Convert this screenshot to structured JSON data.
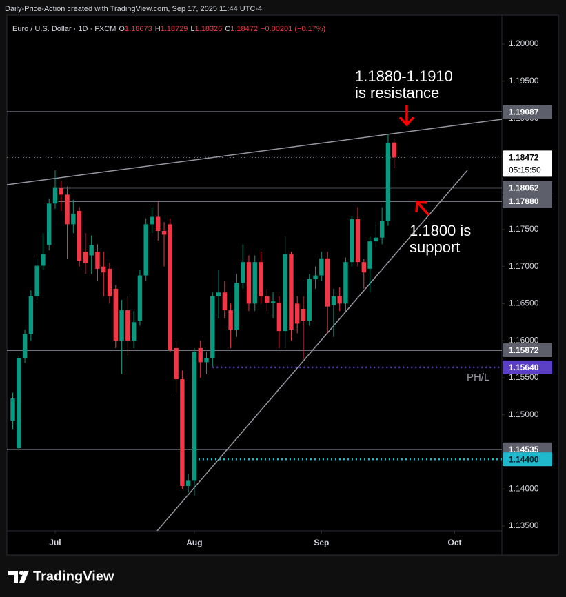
{
  "chart_data": {
    "type": "candlestick",
    "header": "Daily-Price-Action created with TradingView.com, Sep 17, 2025 11:44 UTC-4",
    "legend": {
      "symbol": "Euro / U.S. Dollar · 1D · FXCM",
      "fields": [
        {
          "label": "O",
          "value": 1.18673
        },
        {
          "label": "H",
          "value": 1.18729
        },
        {
          "label": "L",
          "value": 1.18326
        },
        {
          "label": "C",
          "value": 1.18472
        }
      ],
      "change": "−0.00201 (−0.17%)"
    },
    "up_color": "#089981",
    "down_color": "#f23645",
    "open": [
      1.1492,
      1.1455,
      1.1576,
      1.1609,
      1.166,
      1.1701,
      1.1729,
      1.1785,
      1.1806,
      1.1797,
      1.1757,
      1.1775,
      1.172,
      1.1715,
      1.172,
      1.17,
      1.1697,
      1.167,
      1.16,
      1.1641,
      1.16,
      1.1627,
      1.1688,
      1.1757,
      1.1767,
      1.1748,
      1.1757,
      1.159,
      1.1548,
      1.1404,
      1.1411,
      1.159,
      1.1571,
      1.1576,
      1.166,
      1.1665,
      1.1641,
      1.1615,
      1.1678,
      1.1706,
      1.165,
      1.1706,
      1.166,
      1.1651,
      1.1651,
      1.1613,
      1.1717,
      1.165,
      1.1643,
      1.1627,
      1.1683,
      1.1688,
      1.1711,
      1.1648,
      1.166,
      1.165,
      1.1706,
      1.1764,
      1.1706,
      1.1697,
      1.1734,
      1.1739,
      1.1762,
      1.18673
    ],
    "high": [
      1.153,
      1.158,
      1.1615,
      1.1668,
      1.1711,
      1.1745,
      1.1792,
      1.183,
      1.1815,
      1.1808,
      1.179,
      1.178,
      1.1745,
      1.1742,
      1.173,
      1.172,
      1.1705,
      1.1675,
      1.1655,
      1.166,
      1.164,
      1.1695,
      1.1765,
      1.178,
      1.1788,
      1.176,
      1.1765,
      1.16,
      1.156,
      1.142,
      1.159,
      1.16,
      1.1585,
      1.1665,
      1.1695,
      1.168,
      1.165,
      1.169,
      1.173,
      1.1715,
      1.1715,
      1.172,
      1.167,
      1.1665,
      1.166,
      1.174,
      1.172,
      1.166,
      1.166,
      1.169,
      1.17,
      1.172,
      1.172,
      1.167,
      1.1672,
      1.1712,
      1.1768,
      1.178,
      1.171,
      1.174,
      1.176,
      1.178,
      1.1878,
      1.18729
    ],
    "low": [
      1.148,
      1.1453,
      1.157,
      1.16,
      1.1655,
      1.1695,
      1.1722,
      1.1778,
      1.1775,
      1.171,
      1.1745,
      1.17,
      1.169,
      1.169,
      1.168,
      1.166,
      1.165,
      1.159,
      1.1555,
      1.158,
      1.159,
      1.162,
      1.168,
      1.1745,
      1.1735,
      1.17,
      1.1585,
      1.153,
      1.14,
      1.1395,
      1.1391,
      1.155,
      1.1555,
      1.1565,
      1.163,
      1.163,
      1.159,
      1.1605,
      1.167,
      1.164,
      1.164,
      1.165,
      1.164,
      1.163,
      1.159,
      1.159,
      1.16,
      1.161,
      1.1575,
      1.162,
      1.167,
      1.168,
      1.161,
      1.1605,
      1.164,
      1.164,
      1.17,
      1.17,
      1.167,
      1.1665,
      1.1725,
      1.173,
      1.1755,
      1.18326
    ],
    "close": [
      1.1522,
      1.1576,
      1.1609,
      1.166,
      1.1701,
      1.1717,
      1.1785,
      1.1807,
      1.1797,
      1.1757,
      1.1771,
      1.1708,
      1.1705,
      1.1729,
      1.1697,
      1.1692,
      1.166,
      1.16,
      1.1641,
      1.16,
      1.1625,
      1.1688,
      1.1757,
      1.1767,
      1.1748,
      1.1743,
      1.1588,
      1.1548,
      1.1404,
      1.1411,
      1.1585,
      1.1571,
      1.1576,
      1.166,
      1.1665,
      1.1641,
      1.1615,
      1.1678,
      1.1706,
      1.165,
      1.1706,
      1.166,
      1.1651,
      1.1653,
      1.1613,
      1.1717,
      1.1615,
      1.1623,
      1.1627,
      1.1683,
      1.1688,
      1.1711,
      1.1646,
      1.166,
      1.165,
      1.1706,
      1.1764,
      1.1706,
      1.1692,
      1.1734,
      1.1739,
      1.1762,
      1.1867,
      1.18472
    ],
    "xlim": [
      -0.97,
      80.8
    ],
    "xticks": [
      {
        "value": 7,
        "label": "Jul"
      },
      {
        "value": 30,
        "label": "Aug"
      },
      {
        "value": 51,
        "label": "Sep"
      },
      {
        "value": 73,
        "label": "Oct"
      }
    ],
    "ylim": [
      1.13435,
      1.20391
    ],
    "yticks": [
      {
        "value": 1.2,
        "label": "1.20000"
      },
      {
        "value": 1.195,
        "label": "1.19500"
      },
      {
        "value": 1.19,
        "label": "1.19000"
      },
      {
        "value": 1.185,
        "label": "1.18500"
      },
      {
        "value": 1.18,
        "label": "1.18000"
      },
      {
        "value": 1.175,
        "label": "1.17500"
      },
      {
        "value": 1.17,
        "label": "1.17000"
      },
      {
        "value": 1.165,
        "label": "1.16500"
      },
      {
        "value": 1.16,
        "label": "1.16000"
      },
      {
        "value": 1.155,
        "label": "1.15500"
      },
      {
        "value": 1.15,
        "label": "1.15000"
      },
      {
        "value": 1.145,
        "label": "1.14500"
      },
      {
        "value": 1.14,
        "label": "1.14000"
      },
      {
        "value": 1.135,
        "label": "1.13500"
      }
    ],
    "levels": [
      {
        "value": 1.19087,
        "color": "#9598a1",
        "style": "solid",
        "start": -1
      },
      {
        "value": 1.18062,
        "color": "#9598a1",
        "style": "solid",
        "start": 7.5
      },
      {
        "value": 1.1788,
        "label": "1.17880",
        "color": "#9598a1",
        "style": "solid",
        "start": 7.5
      },
      {
        "value": 1.15872,
        "color": "#9598a1",
        "style": "solid",
        "start": -1
      },
      {
        "value": 1.1564,
        "label": "1.15640",
        "color": "#5b3fc4",
        "style": "dotted",
        "start": 33
      },
      {
        "value": 1.14535,
        "color": "#9598a1",
        "style": "solid",
        "start": -1
      },
      {
        "value": 1.144,
        "label": "1.14400",
        "color": "#1fb8cd",
        "style": "dotted",
        "start": 30
      }
    ],
    "current": {
      "value": 1.18472,
      "countdown": "05:15:50"
    },
    "annotations": [
      {
        "lines": [
          "1.1880-1.1910",
          "is resistance"
        ]
      },
      {
        "lines": [
          "1.1800 is",
          "support"
        ]
      },
      {
        "lines": [
          "PH/L"
        ]
      }
    ],
    "brand": "TradingView"
  }
}
